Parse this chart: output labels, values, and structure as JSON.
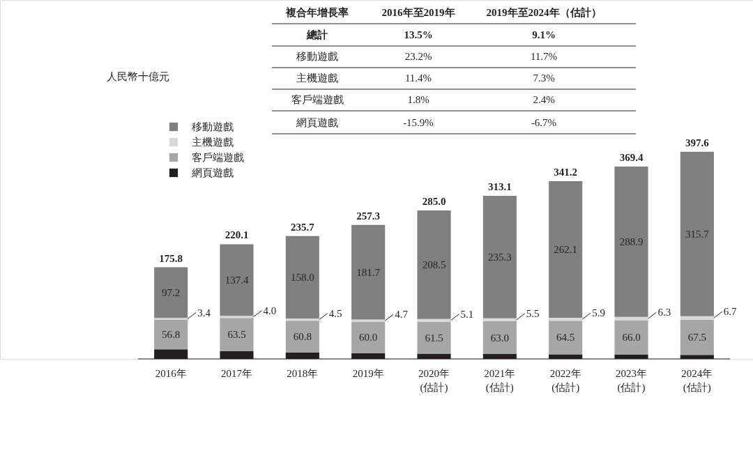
{
  "chart_data": {
    "type": "bar",
    "stacked": true,
    "legend": "top left",
    "categories": [
      "2016年",
      "2017年",
      "2018年",
      "2019年",
      "2020年\n(估計)",
      "2021年\n(估計)",
      "2022年\n(估計)",
      "2023年\n(估計)",
      "2024年\n(估計)"
    ],
    "series": [
      {
        "name": "網頁遊戲",
        "color": "#231f20",
        "values": [
          18.4,
          15.2,
          12.4,
          10.9,
          9.9,
          9.3,
          8.7,
          8.2,
          7.7
        ]
      },
      {
        "name": "客戶端遊戲",
        "color": "#a6a6a6",
        "values": [
          56.8,
          63.5,
          60.8,
          60.0,
          61.5,
          63.0,
          64.5,
          66.0,
          67.5
        ],
        "value_labels": [
          "56.8",
          "63.5",
          "60.8",
          "60.0",
          "61.5",
          "63.0",
          "64.5",
          "66.0",
          "67.5"
        ]
      },
      {
        "name": "主機遊戲",
        "color": "#d9d9d9",
        "values": [
          3.4,
          4.0,
          4.5,
          4.7,
          5.1,
          5.5,
          5.9,
          6.3,
          6.7
        ],
        "value_labels": [
          "3.4",
          "4.0",
          "4.5",
          "4.7",
          "5.1",
          "5.5",
          "5.9",
          "6.3",
          "6.7"
        ]
      },
      {
        "name": "移動遊戲",
        "color": "#808080",
        "values": [
          97.2,
          137.4,
          158.0,
          181.7,
          208.5,
          235.3,
          262.1,
          288.9,
          315.7
        ],
        "value_labels": [
          "97.2",
          "137.4",
          "158.0",
          "181.7",
          "208.5",
          "235.3",
          "262.1",
          "288.9",
          "315.7"
        ]
      }
    ],
    "totals": [
      "175.8",
      "220.1",
      "235.7",
      "257.3",
      "285.0",
      "313.1",
      "341.2",
      "369.4",
      "397.6"
    ],
    "annotations": [
      "人民幣十億元",
      "複合年增長率",
      "2016年至2019年",
      "2019年至2024年（估計）",
      "總計",
      "13.5%",
      "9.1%",
      "移動遊戲",
      "23.2%",
      "11.7%",
      "主機遊戲",
      "11.4%",
      "7.3%",
      "客戶端遊戲",
      "1.8%",
      "2.4%",
      "網頁遊戲",
      "-15.9%",
      "-6.7%"
    ]
  }
}
